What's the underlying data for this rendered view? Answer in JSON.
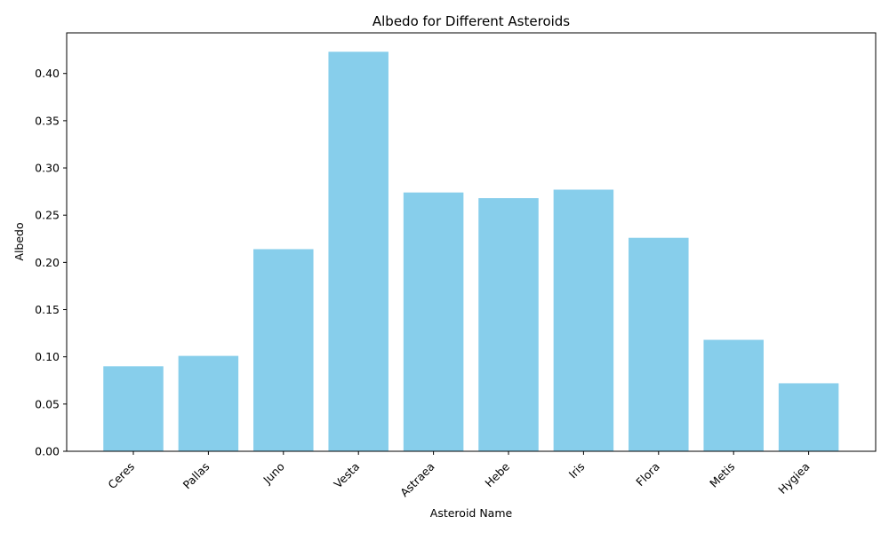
{
  "chart_data": {
    "type": "bar",
    "title": "Albedo for Different Asteroids",
    "xlabel": "Asteroid Name",
    "ylabel": "Albedo",
    "categories": [
      "Ceres",
      "Pallas",
      "Juno",
      "Vesta",
      "Astraea",
      "Hebe",
      "Iris",
      "Flora",
      "Metis",
      "Hygiea"
    ],
    "values": [
      0.09,
      0.101,
      0.214,
      0.423,
      0.274,
      0.268,
      0.277,
      0.226,
      0.118,
      0.072
    ],
    "ylim": [
      0,
      0.443
    ],
    "yticks": [
      "0.00",
      "0.05",
      "0.10",
      "0.15",
      "0.20",
      "0.25",
      "0.30",
      "0.35",
      "0.40"
    ],
    "bar_color": "#87CEEB",
    "grid": false,
    "legend": "none"
  }
}
